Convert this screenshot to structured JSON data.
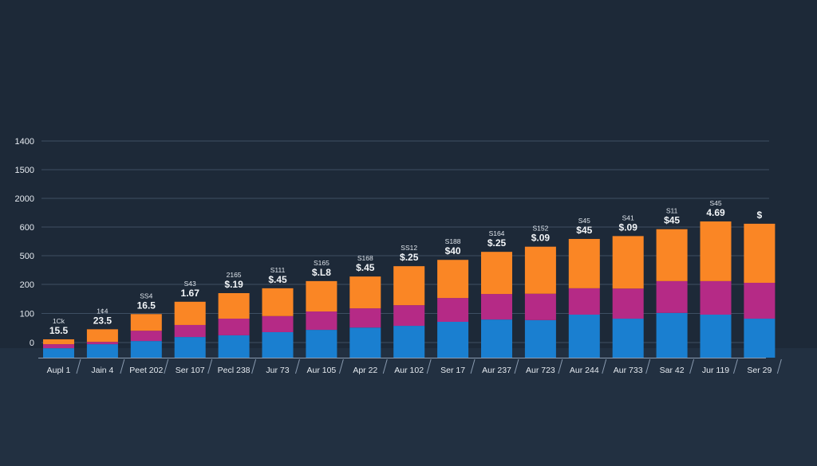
{
  "chart_data": {
    "type": "bar",
    "stacked": true,
    "title": "",
    "xlabel": "",
    "ylabel": "",
    "grid": true,
    "legend": "none",
    "y_tick_labels": [
      "0",
      "100",
      "200",
      "500",
      "600",
      "2000",
      "1500",
      "1400"
    ],
    "ylim": [
      -53,
      700
    ],
    "categories": [
      "Aupl 1",
      "Jain 4",
      "Peet 202",
      "Ser 107",
      "Pecl 238",
      "Jur 73",
      "Aur 105",
      "Apr 22",
      "Aur 102",
      "Ser 17",
      "Aur 237",
      "Aur 723",
      "Aur 244",
      "Aur 733",
      "Sar 42",
      "Jur 119",
      "Ser 29"
    ],
    "series": [
      {
        "name": "blue",
        "color": "#1a7fd0",
        "values": [
          33,
          47,
          58,
          72,
          78,
          89,
          97,
          105,
          111,
          125,
          133,
          131,
          150,
          136,
          156,
          150,
          136
        ]
      },
      {
        "name": "magenta",
        "color": "#b52a86",
        "values": [
          14,
          8,
          36,
          42,
          58,
          56,
          64,
          67,
          72,
          83,
          89,
          92,
          92,
          105,
          111,
          117,
          125
        ]
      },
      {
        "name": "orange",
        "color": "#fa8625",
        "values": [
          17,
          44,
          58,
          81,
          89,
          97,
          106,
          111,
          136,
          133,
          147,
          164,
          172,
          183,
          181,
          208,
          206
        ]
      }
    ],
    "annotations": [
      {
        "small": "1Ck",
        "big": "15.5"
      },
      {
        "small": "1¢4",
        "big": "23.5"
      },
      {
        "small": "SS4",
        "big": "16.5"
      },
      {
        "small": "S43",
        "big": "1.67"
      },
      {
        "small": "2165",
        "big": "$.19"
      },
      {
        "small": "S111",
        "big": "$.45"
      },
      {
        "small": "S165",
        "big": "$.L8"
      },
      {
        "small": "S168",
        "big": "$.45"
      },
      {
        "small": "SS12",
        "big": "$.25"
      },
      {
        "small": "S188",
        "big": "$40"
      },
      {
        "small": "S164",
        "big": "$.25"
      },
      {
        "small": "S152",
        "big": "$.09"
      },
      {
        "small": "S45",
        "big": "$45"
      },
      {
        "small": "S41",
        "big": "$.09"
      },
      {
        "small": "S11",
        "big": "$45"
      },
      {
        "small": "S45",
        "big": "4.69"
      },
      {
        "small": "",
        "big": "$"
      }
    ]
  }
}
